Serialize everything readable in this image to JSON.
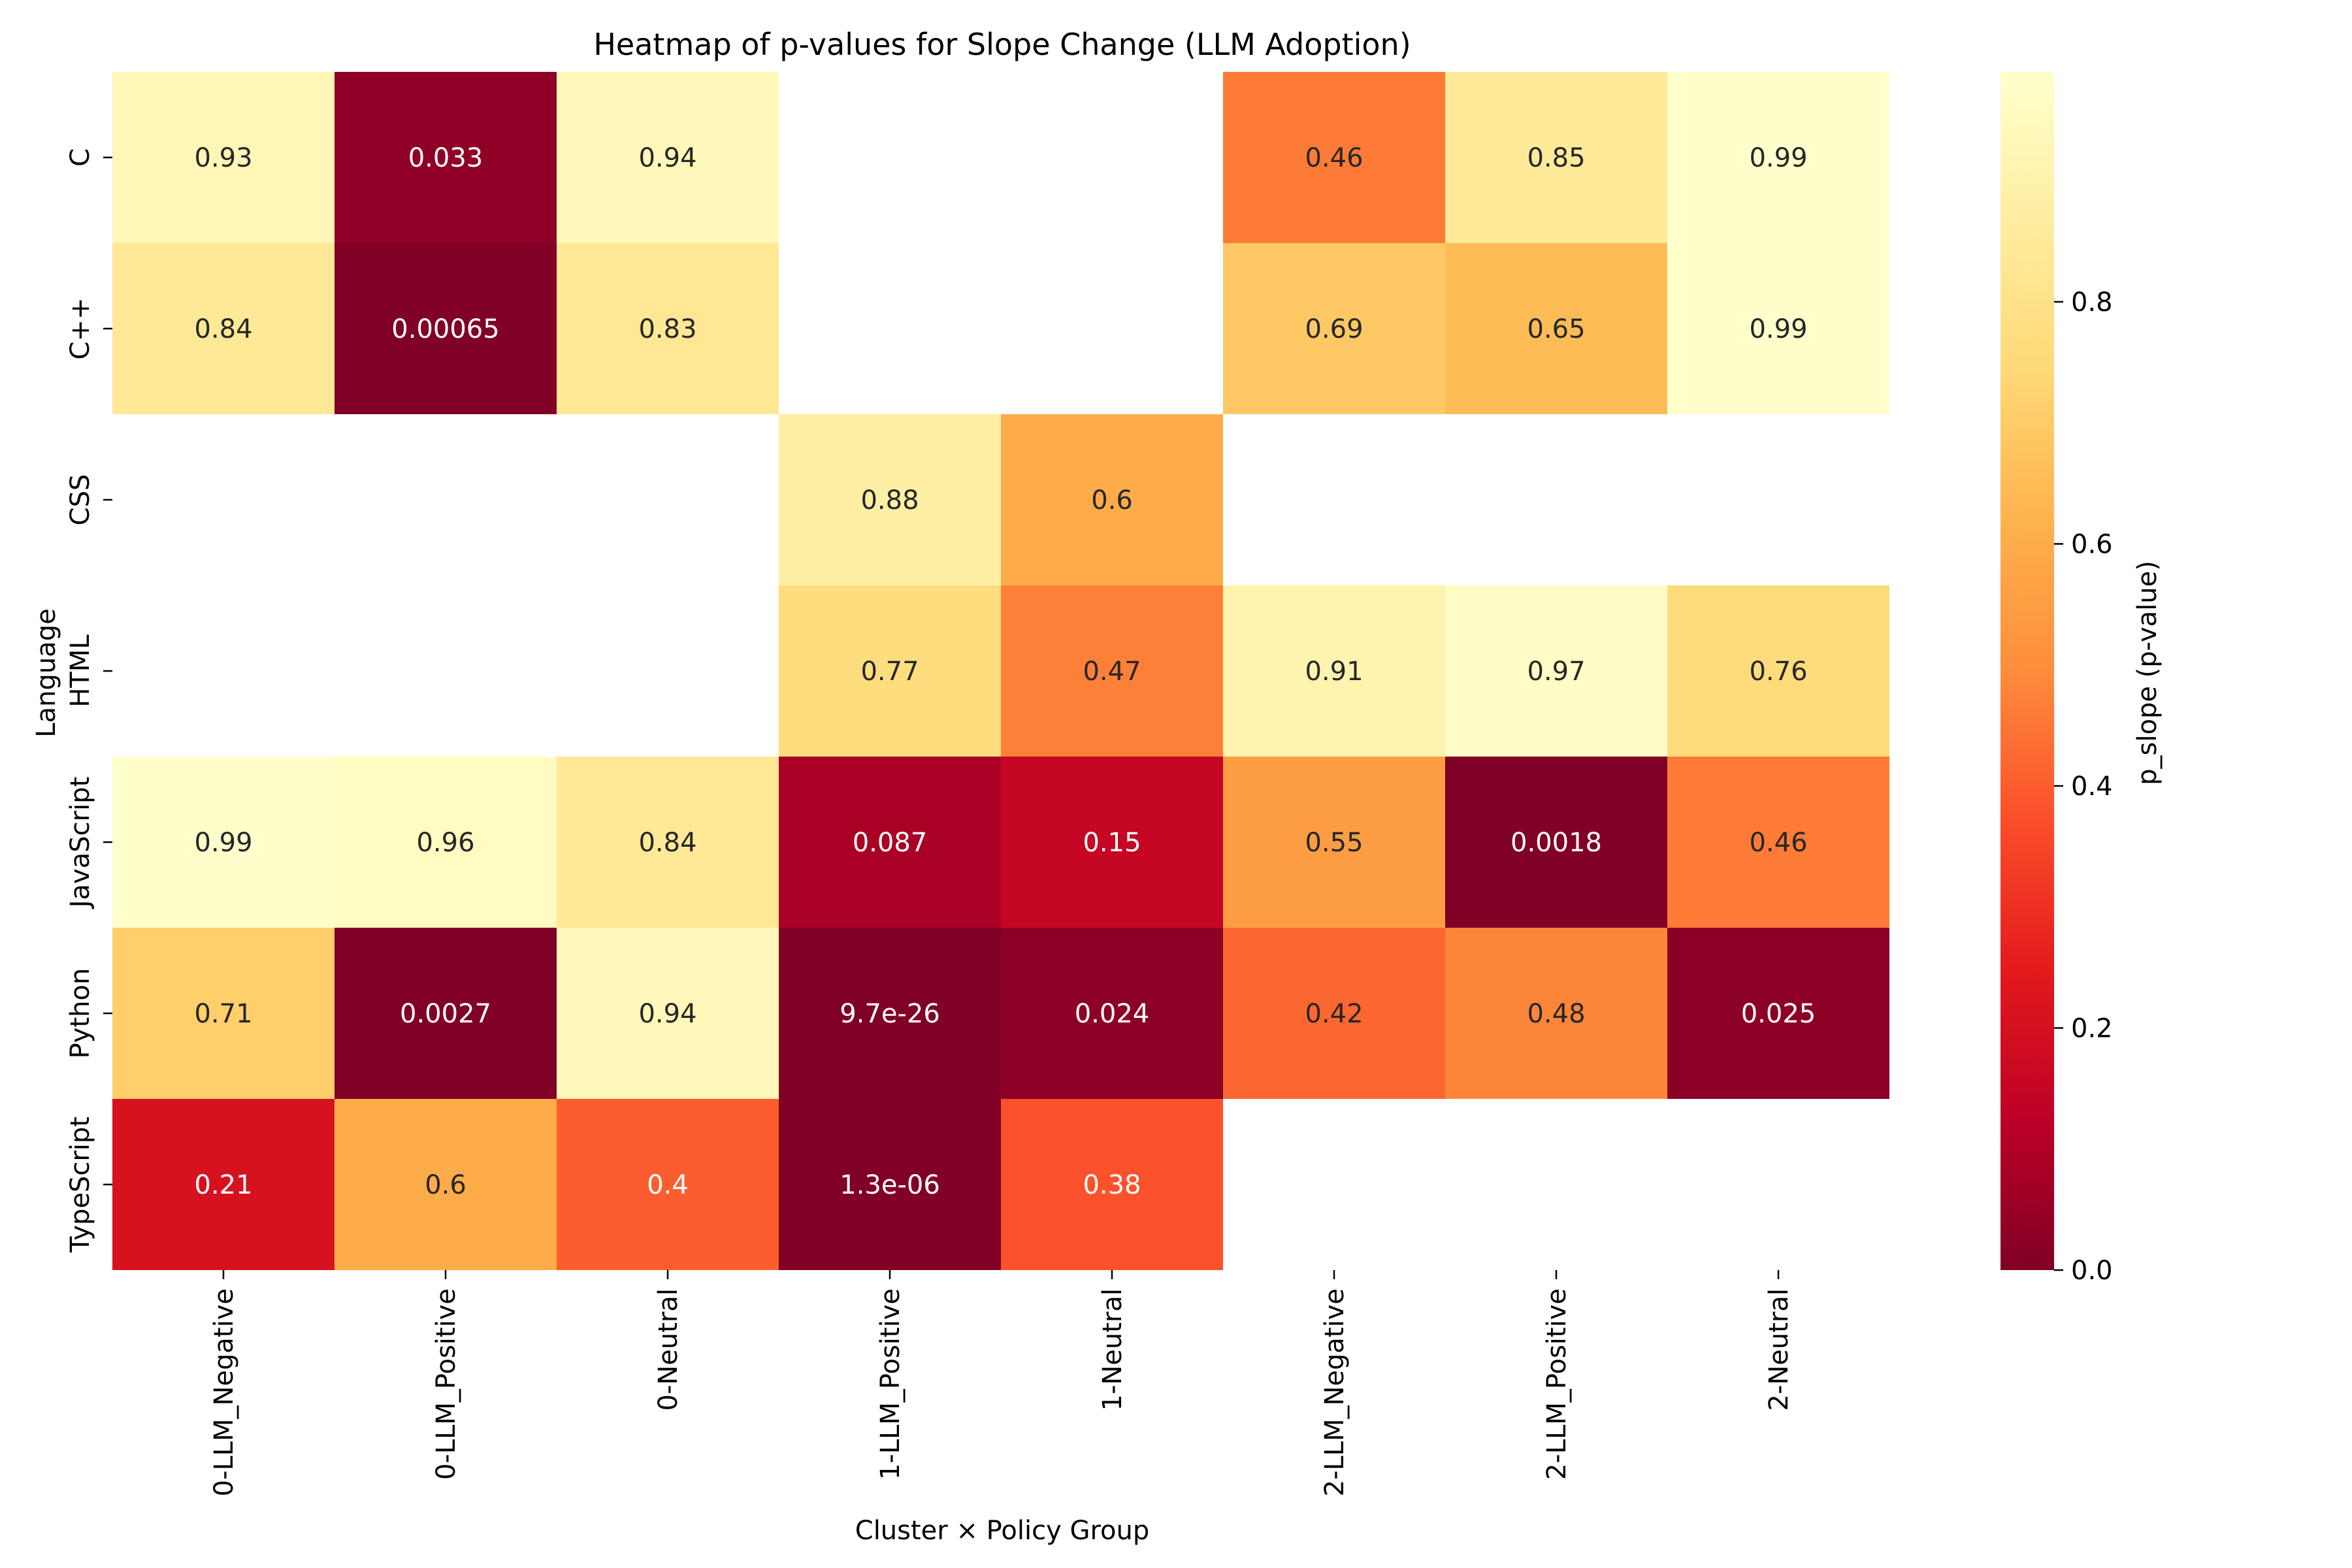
{
  "chart_data": {
    "type": "heatmap",
    "title": "Heatmap of p-values for Slope Change (LLM Adoption)",
    "xlabel": "Cluster × Policy Group",
    "ylabel": "Language",
    "colorbar_label": "p_slope (p-value)",
    "colormap": "YlOrRd_r",
    "vmin": 0.0,
    "vmax": 0.99,
    "colorbar_ticks": [
      "0.0",
      "0.2",
      "0.4",
      "0.6",
      "0.8"
    ],
    "x_categories": [
      "0-LLM_Negative",
      "0-LLM_Positive",
      "0-Neutral",
      "1-LLM_Positive",
      "1-Neutral",
      "2-LLM_Negative",
      "2-LLM_Positive",
      "2-Neutral"
    ],
    "y_categories": [
      "C",
      "C++",
      "CSS",
      "HTML",
      "JavaScript",
      "Python",
      "TypeScript"
    ],
    "values": [
      [
        0.93,
        0.033,
        0.94,
        null,
        null,
        0.46,
        0.85,
        0.99
      ],
      [
        0.84,
        0.00065,
        0.83,
        null,
        null,
        0.69,
        0.65,
        0.99
      ],
      [
        null,
        null,
        null,
        0.88,
        0.6,
        null,
        null,
        null
      ],
      [
        null,
        null,
        null,
        0.77,
        0.47,
        0.91,
        0.97,
        0.76
      ],
      [
        0.99,
        0.96,
        0.84,
        0.087,
        0.15,
        0.55,
        0.0018,
        0.46
      ],
      [
        0.71,
        0.0027,
        0.94,
        9.7e-26,
        0.024,
        0.42,
        0.48,
        0.025
      ],
      [
        0.21,
        0.6,
        0.4,
        1.3e-06,
        0.38,
        null,
        null,
        null
      ]
    ],
    "annotations": [
      [
        "0.93",
        "0.033",
        "0.94",
        "",
        "",
        "0.46",
        "0.85",
        "0.99"
      ],
      [
        "0.84",
        "0.00065",
        "0.83",
        "",
        "",
        "0.69",
        "0.65",
        "0.99"
      ],
      [
        "",
        "",
        "",
        "0.88",
        "0.6",
        "",
        "",
        ""
      ],
      [
        "",
        "",
        "",
        "0.77",
        "0.47",
        "0.91",
        "0.97",
        "0.76"
      ],
      [
        "0.99",
        "0.96",
        "0.84",
        "0.087",
        "0.15",
        "0.55",
        "0.0018",
        "0.46"
      ],
      [
        "0.71",
        "0.0027",
        "0.94",
        "9.7e-26",
        "0.024",
        "0.42",
        "0.48",
        "0.025"
      ],
      [
        "0.21",
        "0.6",
        "0.4",
        "1.3e-06",
        "0.38",
        "",
        "",
        ""
      ]
    ]
  }
}
